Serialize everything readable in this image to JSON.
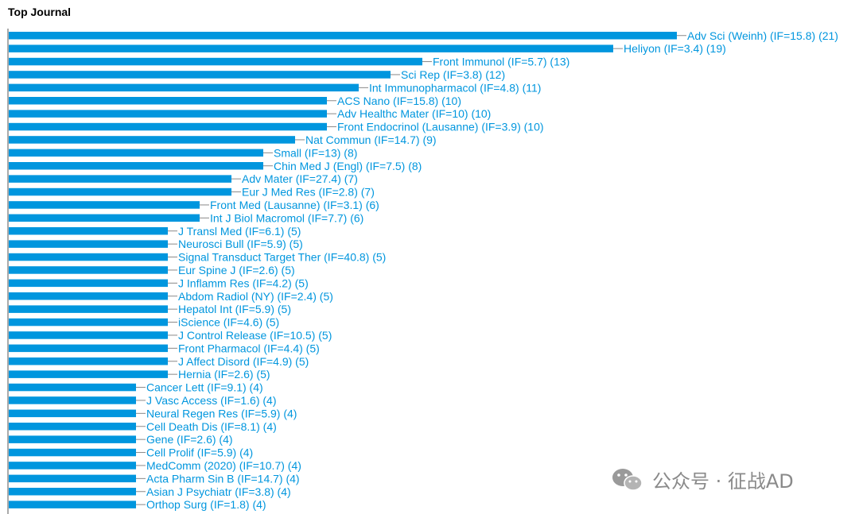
{
  "chart_data": {
    "type": "bar",
    "orientation": "horizontal",
    "title": "Top Journal",
    "xlabel": "",
    "ylabel": "",
    "xlim": [
      0,
      21
    ],
    "grid": false,
    "bar_color": "#0096DE",
    "label_color": "#0096DE",
    "categories": [
      "Adv Sci (Weinh) (IF=15.8) (21)",
      "Heliyon (IF=3.4) (19)",
      "Front Immunol (IF=5.7) (13)",
      "Sci Rep (IF=3.8) (12)",
      "Int Immunopharmacol (IF=4.8) (11)",
      "ACS Nano (IF=15.8) (10)",
      "Adv Healthc Mater (IF=10) (10)",
      "Front Endocrinol (Lausanne) (IF=3.9) (10)",
      "Nat Commun (IF=14.7) (9)",
      "Small (IF=13) (8)",
      "Chin Med J (Engl) (IF=7.5) (8)",
      "Adv Mater (IF=27.4) (7)",
      "Eur J Med Res (IF=2.8) (7)",
      "Front Med (Lausanne) (IF=3.1) (6)",
      "Int J Biol Macromol (IF=7.7) (6)",
      "J Transl Med (IF=6.1) (5)",
      "Neurosci Bull (IF=5.9) (5)",
      "Signal Transduct Target Ther (IF=40.8) (5)",
      "Eur Spine J (IF=2.6) (5)",
      "J Inflamm Res (IF=4.2) (5)",
      "Abdom Radiol (NY) (IF=2.4) (5)",
      "Hepatol Int (IF=5.9) (5)",
      "iScience (IF=4.6) (5)",
      "J Control Release (IF=10.5) (5)",
      "Front Pharmacol (IF=4.4) (5)",
      "J Affect Disord (IF=4.9) (5)",
      "Hernia (IF=2.6) (5)",
      "Cancer Lett (IF=9.1) (4)",
      "J Vasc Access (IF=1.6) (4)",
      "Neural Regen Res (IF=5.9) (4)",
      "Cell Death Dis (IF=8.1) (4)",
      "Gene (IF=2.6) (4)",
      "Cell Prolif (IF=5.9) (4)",
      "MedComm (2020) (IF=10.7) (4)",
      "Acta Pharm Sin B (IF=14.7) (4)",
      "Asian J Psychiatr (IF=3.8) (4)",
      "Orthop Surg (IF=1.8) (4)"
    ],
    "values": [
      21,
      19,
      13,
      12,
      11,
      10,
      10,
      10,
      9,
      8,
      8,
      7,
      7,
      6,
      6,
      5,
      5,
      5,
      5,
      5,
      5,
      5,
      5,
      5,
      5,
      5,
      5,
      4,
      4,
      4,
      4,
      4,
      4,
      4,
      4,
      4,
      4
    ]
  },
  "watermark": {
    "text": "公众号 · 征战AD",
    "icon": "wechat-icon",
    "color": "#8a8a8a"
  }
}
